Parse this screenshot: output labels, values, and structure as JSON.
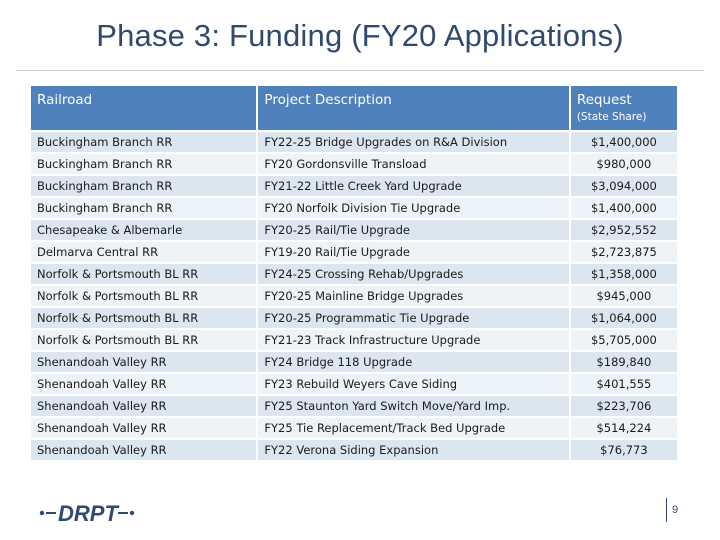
{
  "title": "Phase 3: Funding (FY20 Applications)",
  "table": {
    "headers": {
      "railroad": "Railroad",
      "description": "Project Description",
      "request": "Request",
      "request_sub": "(State Share)"
    },
    "rows": [
      {
        "railroad": "Buckingham Branch RR",
        "description": "FY22-25 Bridge Upgrades on R&A Division",
        "request": "$1,400,000"
      },
      {
        "railroad": "Buckingham Branch RR",
        "description": "FY20  Gordonsville Transload",
        "request": "$980,000"
      },
      {
        "railroad": "Buckingham Branch RR",
        "description": "FY21-22 Little Creek Yard Upgrade",
        "request": "$3,094,000"
      },
      {
        "railroad": "Buckingham Branch RR",
        "description": "FY20 Norfolk Division Tie Upgrade",
        "request": "$1,400,000"
      },
      {
        "railroad": "Chesapeake & Albemarle",
        "description": "FY20-25 Rail/Tie Upgrade",
        "request": "$2,952,552"
      },
      {
        "railroad": "Delmarva Central RR",
        "description": "FY19-20 Rail/Tie Upgrade",
        "request": "$2,723,875"
      },
      {
        "railroad": "Norfolk & Portsmouth BL RR",
        "description": "FY24-25 Crossing Rehab/Upgrades",
        "request": "$1,358,000"
      },
      {
        "railroad": "Norfolk & Portsmouth BL RR",
        "description": "FY20-25 Mainline Bridge Upgrades",
        "request": "$945,000"
      },
      {
        "railroad": "Norfolk & Portsmouth BL RR",
        "description": "FY20-25 Programmatic Tie Upgrade",
        "request": "$1,064,000"
      },
      {
        "railroad": "Norfolk & Portsmouth BL RR",
        "description": "FY21-23 Track Infrastructure Upgrade",
        "request": "$5,705,000"
      },
      {
        "railroad": "Shenandoah Valley RR",
        "description": "FY24 Bridge 118 Upgrade",
        "request": "$189,840"
      },
      {
        "railroad": "Shenandoah Valley RR",
        "description": "FY23 Rebuild Weyers Cave Siding",
        "request": "$401,555"
      },
      {
        "railroad": "Shenandoah Valley RR",
        "description": "FY25 Staunton Yard Switch Move/Yard Imp.",
        "request": "$223,706"
      },
      {
        "railroad": "Shenandoah Valley RR",
        "description": "FY25 Tie Replacement/Track Bed Upgrade",
        "request": "$514,224"
      },
      {
        "railroad": "Shenandoah Valley RR",
        "description": "FY22 Verona Siding Expansion",
        "request": "$76,773"
      }
    ]
  },
  "footer": {
    "logo_text": "DRPT",
    "page_number": "9",
    "brand_color": "#2f4a6e"
  }
}
